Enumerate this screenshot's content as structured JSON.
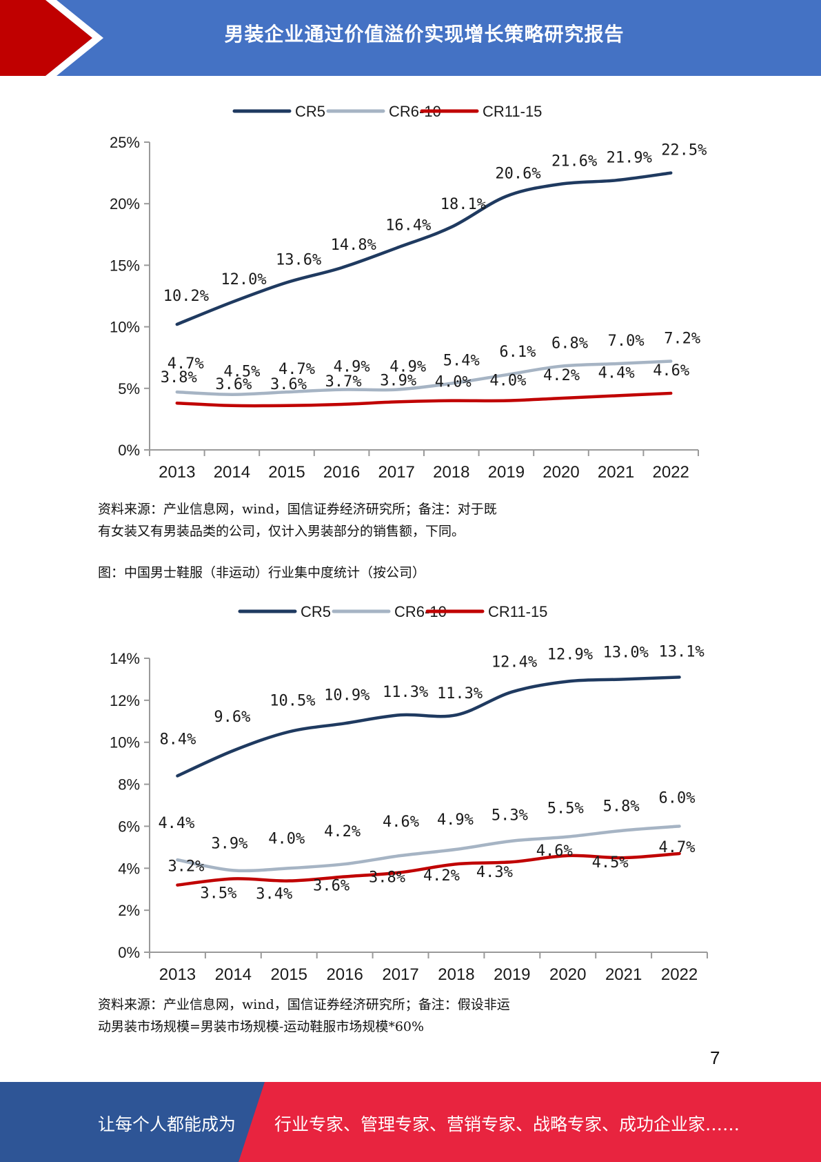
{
  "header": {
    "title": "男装企业通过价值溢价实现增长策略研究报告",
    "colors": {
      "band": "#4472c4",
      "arrow": "#c00000"
    }
  },
  "chart_data": [
    {
      "type": "line",
      "categories": [
        "2013",
        "2014",
        "2015",
        "2016",
        "2017",
        "2018",
        "2019",
        "2020",
        "2021",
        "2022"
      ],
      "ylim": [
        0,
        25
      ],
      "yticks": [
        "0%",
        "5%",
        "10%",
        "15%",
        "20%",
        "25%"
      ],
      "grid": false,
      "legend_position": "top-center",
      "series": [
        {
          "name": "CR5",
          "color": "#1f3a60",
          "values": [
            10.2,
            12.0,
            13.6,
            14.8,
            16.4,
            18.1,
            20.6,
            21.6,
            21.9,
            22.5
          ],
          "labels": [
            "10.2%",
            "12.0%",
            "13.6%",
            "14.8%",
            "16.4%",
            "18.1%",
            "20.6%",
            "21.6%",
            "21.9%",
            "22.5%"
          ]
        },
        {
          "name": "CR6-10",
          "color": "#a6b4c4",
          "values": [
            4.7,
            4.5,
            4.7,
            4.9,
            4.9,
            5.4,
            6.1,
            6.8,
            7.0,
            7.2
          ],
          "labels": [
            "4.7%",
            "4.5%",
            "4.7%",
            "4.9%",
            "4.9%",
            "5.4%",
            "6.1%",
            "6.8%",
            "7.0%",
            "7.2%"
          ]
        },
        {
          "name": "CR11-15",
          "color": "#c00000",
          "values": [
            3.8,
            3.6,
            3.6,
            3.7,
            3.9,
            4.0,
            4.0,
            4.2,
            4.4,
            4.6
          ],
          "labels": [
            "3.8%",
            "3.6%",
            "3.6%",
            "3.7%",
            "3.9%",
            "4.0%",
            "4.0%",
            "4.2%",
            "4.4%",
            "4.6%"
          ]
        }
      ]
    },
    {
      "type": "line",
      "categories": [
        "2013",
        "2014",
        "2015",
        "2016",
        "2017",
        "2018",
        "2019",
        "2020",
        "2021",
        "2022"
      ],
      "ylim": [
        0,
        14
      ],
      "yticks": [
        "0%",
        "2%",
        "4%",
        "6%",
        "8%",
        "10%",
        "12%",
        "14%"
      ],
      "grid": false,
      "legend_position": "top-center",
      "series": [
        {
          "name": "CR5",
          "color": "#1f3a60",
          "values": [
            8.4,
            9.6,
            10.5,
            10.9,
            11.3,
            11.3,
            12.4,
            12.9,
            13.0,
            13.1
          ],
          "labels": [
            "8.4%",
            "9.6%",
            "10.5%",
            "10.9%",
            "11.3%",
            "11.3%",
            "12.4%",
            "12.9%",
            "13.0%",
            "13.1%"
          ]
        },
        {
          "name": "CR6-10",
          "color": "#a6b4c4",
          "values": [
            4.4,
            3.9,
            4.0,
            4.2,
            4.6,
            4.9,
            5.3,
            5.5,
            5.8,
            6.0
          ],
          "labels": [
            "4.4%",
            "3.9%",
            "4.0%",
            "4.2%",
            "4.6%",
            "4.9%",
            "5.3%",
            "5.5%",
            "5.8%",
            "6.0%"
          ]
        },
        {
          "name": "CR11-15",
          "color": "#c00000",
          "values": [
            3.2,
            3.5,
            3.4,
            3.6,
            3.8,
            4.2,
            4.3,
            4.6,
            4.5,
            4.7
          ],
          "labels": [
            "3.2%",
            "3.5%",
            "3.4%",
            "3.6%",
            "3.8%",
            "4.2%",
            "4.3%",
            "4.6%",
            "4.5%",
            "4.7%"
          ]
        }
      ]
    }
  ],
  "notes": {
    "source1_line1": "资料来源：产业信息网，wind，国信证券经济研究所；备注：对于既",
    "source1_line2": "有女装又有男装品类的公司，仅计入男装部分的销售额，下同。",
    "figure2_caption": "图：中国男士鞋服（非运动）行业集中度统计（按公司）",
    "source2_line1": "资料来源：产业信息网，wind，国信证券经济研究所；备注：假设非运",
    "source2_line2": "动男装市场规模=男装市场规模-运动鞋服市场规模*60%"
  },
  "page_number": "7",
  "footer": {
    "left_text": "让每个人都能成为",
    "right_text": "行业专家、管理专家、营销专家、战略专家、成功企业家……",
    "colors": {
      "left": "#2e5596",
      "right": "#e8243f"
    }
  }
}
